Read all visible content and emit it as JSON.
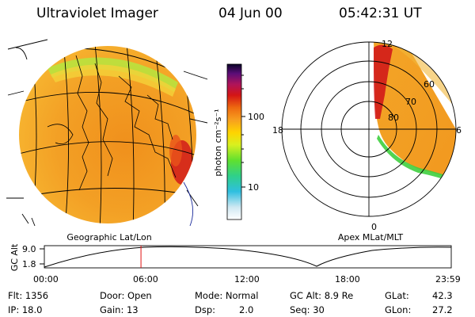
{
  "header": {
    "title": "Ultraviolet Imager",
    "date": "04 Jun 00",
    "time": "05:42:31 UT"
  },
  "colorbar": {
    "unit_label": "photon cm⁻²s⁻¹",
    "ticks": [
      "100",
      "10"
    ]
  },
  "left_panel": {
    "caption": "Geographic Lat/Lon"
  },
  "right_panel": {
    "caption": "Apex MLat/MLT",
    "mlt_labels": [
      "12",
      "18",
      "6",
      "0"
    ],
    "mlat_labels": [
      "60",
      "70",
      "80"
    ]
  },
  "altitude_track": {
    "ylabel": "GC Alt",
    "y_ticks": [
      "9.0",
      "1.8"
    ],
    "x_ticks": [
      "00:00",
      "06:00",
      "12:00",
      "18:00",
      "23:59"
    ],
    "current_time_hours": 5.7
  },
  "status": {
    "flt": "Flt: 1356",
    "door": "Door: Open",
    "mode": "Mode: Normal",
    "gc_alt": "GC Alt: 8.9 Re",
    "glat_label": "GLat:",
    "glat_value": "42.3",
    "ip": "IP: 18.0",
    "gain": "Gain: 13",
    "dsp_label": "Dsp:",
    "dsp_value": "2.0",
    "seq": "Seq: 30",
    "glon_label": "GLon:",
    "glon_value": "27.2"
  },
  "colors": {
    "aurora_orange": "#f5a623",
    "aurora_red": "#d11a1a",
    "aurora_green": "#3fcf3f",
    "marker_red": "#e01010"
  }
}
